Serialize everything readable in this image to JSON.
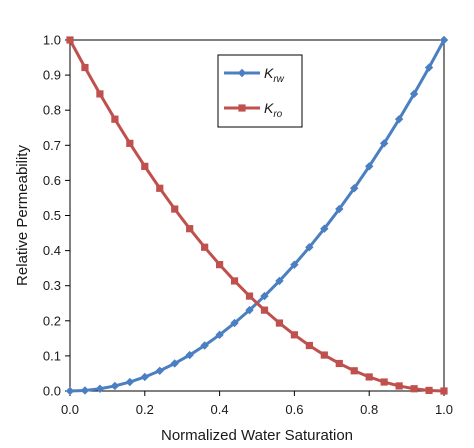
{
  "chart_data": {
    "type": "line",
    "xlabel": "Normalized Water Saturation",
    "ylabel": "Relative Permeability",
    "xlim": [
      0,
      1
    ],
    "ylim": [
      0,
      1
    ],
    "x_ticks": [
      "0.0",
      "0.2",
      "0.4",
      "0.6",
      "0.8",
      "1.0"
    ],
    "y_ticks": [
      "0.0",
      "0.1",
      "0.2",
      "0.3",
      "0.4",
      "0.5",
      "0.6",
      "0.7",
      "0.8",
      "0.9",
      "1.0"
    ],
    "grid": false,
    "legend_position": "top-center",
    "x": [
      0,
      0.04,
      0.08,
      0.12,
      0.16,
      0.2,
      0.24,
      0.28,
      0.32,
      0.36,
      0.4,
      0.44,
      0.48,
      0.52,
      0.56,
      0.6,
      0.64,
      0.68,
      0.72,
      0.76,
      0.8,
      0.84,
      0.88,
      0.92,
      0.96,
      1.0
    ],
    "series": [
      {
        "name": "Krw",
        "label_main": "K",
        "label_sub": "rw",
        "color": "#4a7fc1",
        "marker": "diamond",
        "values": [
          0,
          0.0016,
          0.0064,
          0.0144,
          0.0256,
          0.04,
          0.0576,
          0.0784,
          0.1024,
          0.1296,
          0.16,
          0.1936,
          0.2304,
          0.2704,
          0.3136,
          0.36,
          0.4096,
          0.4624,
          0.5184,
          0.5776,
          0.64,
          0.7056,
          0.7744,
          0.8464,
          0.9216,
          1.0
        ]
      },
      {
        "name": "Kro",
        "label_main": "K",
        "label_sub": "ro",
        "color": "#c0504d",
        "marker": "square",
        "values": [
          1.0,
          0.9216,
          0.8464,
          0.7744,
          0.7056,
          0.64,
          0.5776,
          0.5184,
          0.4624,
          0.4096,
          0.36,
          0.3136,
          0.2704,
          0.2304,
          0.1936,
          0.16,
          0.1296,
          0.1024,
          0.0784,
          0.0576,
          0.04,
          0.0256,
          0.0144,
          0.0064,
          0.0016,
          0
        ]
      }
    ]
  }
}
